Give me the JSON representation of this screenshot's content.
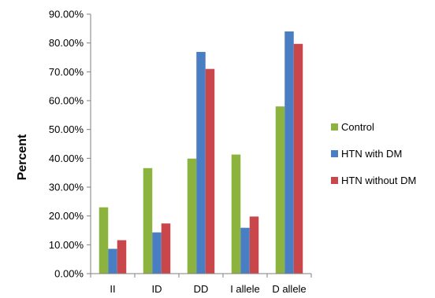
{
  "chart_data": {
    "type": "bar",
    "title": "",
    "xlabel": "",
    "ylabel": "Percent",
    "ylim": [
      0,
      90
    ],
    "yticks": [
      "0.00%",
      "10.00%",
      "20.00%",
      "30.00%",
      "40.00%",
      "50.00%",
      "60.00%",
      "70.00%",
      "80.00%",
      "90.00%"
    ],
    "categories": [
      "II",
      "ID",
      "DD",
      "I allele",
      "D allele"
    ],
    "series": [
      {
        "name": "Control",
        "color": "#8db33f",
        "values": [
          23.0,
          36.6,
          39.9,
          41.3,
          58.0
        ]
      },
      {
        "name": "HTN with DM",
        "color": "#4a7ec2",
        "values": [
          8.6,
          14.3,
          76.9,
          15.9,
          84.0
        ]
      },
      {
        "name": "HTN without DM",
        "color": "#c9474a",
        "values": [
          11.6,
          17.4,
          71.0,
          19.8,
          79.7
        ]
      }
    ],
    "grid": false,
    "legend": "right"
  }
}
